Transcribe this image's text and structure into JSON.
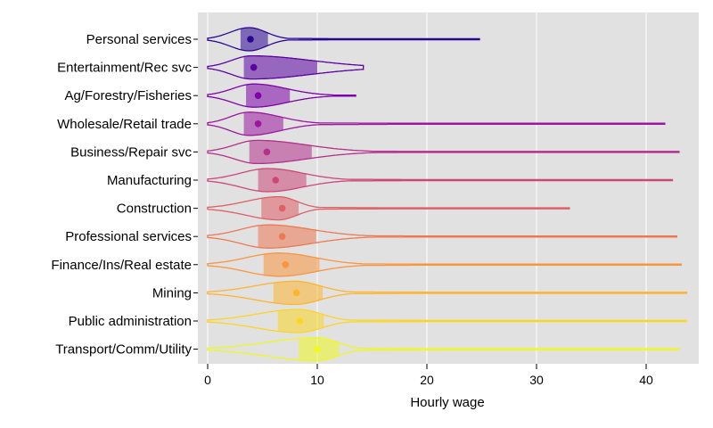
{
  "chart_data": {
    "type": "violin",
    "xlabel": "Hourly wage",
    "ylabel": "",
    "xlim": [
      0,
      44
    ],
    "xticks": [
      0,
      10,
      20,
      30,
      40
    ],
    "grid": true,
    "legend": "none",
    "background_color": "#e1e1e1",
    "categories": [
      "Personal services",
      "Entertainment/Rec svc",
      "Ag/Forestry/Fisheries",
      "Wholesale/Retail trade",
      "Business/Repair svc",
      "Manufacturing",
      "Construction",
      "Professional services",
      "Finance/Ins/Real estate",
      "Mining",
      "Public administration",
      "Transport/Comm/Utility"
    ],
    "colors": [
      "#2a0593",
      "#5b02a3",
      "#7e03a8",
      "#9c179e",
      "#b52f8c",
      "#cc4778",
      "#de5f65",
      "#ed7953",
      "#f89540",
      "#fdb42f",
      "#fbd524",
      "#eff821"
    ],
    "series": [
      {
        "min": 0.0,
        "q1": 3.0,
        "median": 3.9,
        "q3": 5.5,
        "max": 24.8,
        "peak": 3.8
      },
      {
        "min": 0.0,
        "q1": 3.3,
        "median": 4.2,
        "q3": 10.0,
        "max": 14.2,
        "peak": 4.0
      },
      {
        "min": 0.0,
        "q1": 3.5,
        "median": 4.6,
        "q3": 7.5,
        "max": 13.5,
        "peak": 4.2
      },
      {
        "min": 0.0,
        "q1": 3.3,
        "median": 4.6,
        "q3": 6.9,
        "max": 41.7,
        "peak": 3.8
      },
      {
        "min": 0.0,
        "q1": 3.8,
        "median": 5.4,
        "q3": 9.5,
        "max": 43.0,
        "peak": 4.5
      },
      {
        "min": 0.0,
        "q1": 4.6,
        "median": 6.2,
        "q3": 9.0,
        "max": 42.4,
        "peak": 5.5
      },
      {
        "min": 0.0,
        "q1": 4.9,
        "median": 6.8,
        "q3": 8.3,
        "max": 33.0,
        "peak": 6.5
      },
      {
        "min": 0.0,
        "q1": 4.6,
        "median": 6.8,
        "q3": 9.9,
        "max": 42.8,
        "peak": 5.5
      },
      {
        "min": 0.0,
        "q1": 5.1,
        "median": 7.1,
        "q3": 10.2,
        "max": 43.2,
        "peak": 6.5
      },
      {
        "min": 0.0,
        "q1": 6.0,
        "median": 8.1,
        "q3": 10.5,
        "max": 43.7,
        "peak": 8.0
      },
      {
        "min": 0.0,
        "q1": 6.4,
        "median": 8.4,
        "q3": 10.6,
        "max": 43.7,
        "peak": 8.3
      },
      {
        "min": 0.0,
        "q1": 8.3,
        "median": 10.0,
        "q3": 12.0,
        "max": 43.0,
        "peak": 10.0
      }
    ]
  }
}
